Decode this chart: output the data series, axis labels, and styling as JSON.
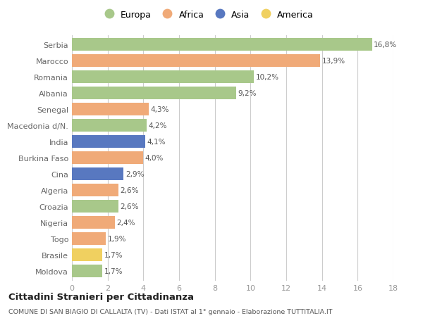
{
  "countries": [
    "Serbia",
    "Marocco",
    "Romania",
    "Albania",
    "Senegal",
    "Macedonia d/N.",
    "India",
    "Burkina Faso",
    "Cina",
    "Algeria",
    "Croazia",
    "Nigeria",
    "Togo",
    "Brasile",
    "Moldova"
  ],
  "values": [
    16.8,
    13.9,
    10.2,
    9.2,
    4.3,
    4.2,
    4.1,
    4.0,
    2.9,
    2.6,
    2.6,
    2.4,
    1.9,
    1.7,
    1.7
  ],
  "labels": [
    "16,8%",
    "13,9%",
    "10,2%",
    "9,2%",
    "4,3%",
    "4,2%",
    "4,1%",
    "4,0%",
    "2,9%",
    "2,6%",
    "2,6%",
    "2,4%",
    "1,9%",
    "1,7%",
    "1,7%"
  ],
  "continents": [
    "Europa",
    "Africa",
    "Europa",
    "Europa",
    "Africa",
    "Europa",
    "Asia",
    "Africa",
    "Asia",
    "Africa",
    "Europa",
    "Africa",
    "Africa",
    "America",
    "Europa"
  ],
  "continent_colors": {
    "Europa": "#a8c88a",
    "Africa": "#f0aa78",
    "Asia": "#5878c0",
    "America": "#f0d060"
  },
  "legend_order": [
    "Europa",
    "Africa",
    "Asia",
    "America"
  ],
  "title": "Cittadini Stranieri per Cittadinanza",
  "subtitle": "COMUNE DI SAN BIAGIO DI CALLALTA (TV) - Dati ISTAT al 1° gennaio - Elaborazione TUTTITALIA.IT",
  "xlim": [
    0,
    18
  ],
  "xticks": [
    0,
    2,
    4,
    6,
    8,
    10,
    12,
    14,
    16,
    18
  ],
  "bg_color": "#ffffff",
  "grid_color": "#cccccc",
  "bar_height": 0.78
}
